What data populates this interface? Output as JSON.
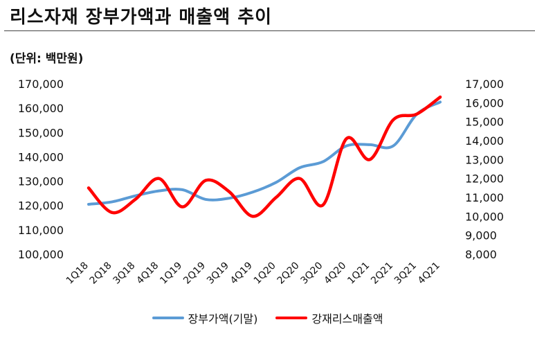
{
  "header": {
    "title": "리스자재 장부가액과 매출액 추이",
    "unit": "(단위: 백만원)"
  },
  "legend": {
    "series1": "장부가액(기말)",
    "series2": "강재리스매출액"
  },
  "chart_data": {
    "type": "line",
    "categories": [
      "1Q18",
      "2Q18",
      "3Q18",
      "4Q18",
      "1Q19",
      "2Q19",
      "3Q19",
      "4Q19",
      "1Q20",
      "2Q20",
      "3Q20",
      "4Q20",
      "1Q21",
      "2Q21",
      "3Q21",
      "4Q21"
    ],
    "y_left": {
      "min": 100000,
      "max": 170000,
      "ticks": [
        100000,
        110000,
        120000,
        130000,
        140000,
        150000,
        160000,
        170000
      ]
    },
    "y_right": {
      "min": 8000,
      "max": 17000,
      "ticks": [
        8000,
        9000,
        10000,
        11000,
        12000,
        13000,
        14000,
        15000,
        16000,
        17000
      ]
    },
    "series": [
      {
        "name": "장부가액(기말)",
        "axis": "left",
        "color": "#5b9bd5",
        "values": [
          120500,
          121500,
          124000,
          126000,
          126500,
          122500,
          123000,
          125500,
          129500,
          135500,
          138000,
          144500,
          145000,
          144500,
          157500,
          162500
        ]
      },
      {
        "name": "강재리스매출액",
        "axis": "right",
        "color": "#ff0000",
        "values": [
          11500,
          10200,
          10900,
          12000,
          10500,
          11900,
          11300,
          10000,
          11000,
          12000,
          10600,
          14100,
          13000,
          15100,
          15400,
          16300
        ]
      }
    ],
    "grid": false,
    "legend_position": "bottom"
  }
}
